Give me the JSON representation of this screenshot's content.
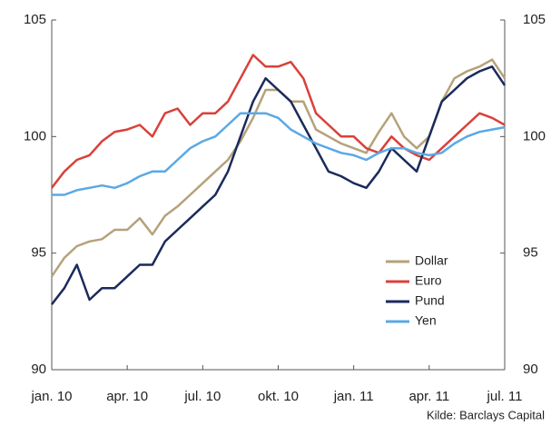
{
  "chart_data": {
    "type": "line",
    "categories": [
      "jan. 10",
      null,
      null,
      null,
      null,
      null,
      "apr. 10",
      null,
      null,
      null,
      null,
      null,
      "jul. 10",
      null,
      null,
      null,
      null,
      null,
      "okt. 10",
      null,
      null,
      null,
      null,
      null,
      "jan. 11",
      null,
      null,
      null,
      null,
      null,
      "apr. 11",
      null,
      null,
      null,
      null,
      null,
      "jul. 11"
    ],
    "series": [
      {
        "name": "Dollar",
        "color": "#b5a27a",
        "values": [
          94.0,
          94.8,
          95.3,
          95.5,
          95.6,
          96.0,
          96.0,
          96.5,
          95.8,
          96.6,
          97.0,
          97.5,
          98.0,
          98.5,
          99.0,
          99.8,
          100.8,
          102.0,
          102.0,
          101.5,
          101.5,
          100.3,
          100.0,
          99.7,
          99.5,
          99.3,
          100.2,
          101.0,
          100.0,
          99.5,
          100.0,
          101.5,
          102.5,
          102.8,
          103.0,
          103.3,
          102.5
        ]
      },
      {
        "name": "Euro",
        "color": "#d9413a",
        "values": [
          97.8,
          98.5,
          99.0,
          99.2,
          99.8,
          100.2,
          100.3,
          100.5,
          100.0,
          101.0,
          101.2,
          100.5,
          101.0,
          101.0,
          101.5,
          102.5,
          103.5,
          103.0,
          103.0,
          103.2,
          102.5,
          101.0,
          100.5,
          100.0,
          100.0,
          99.5,
          99.3,
          100.0,
          99.5,
          99.2,
          99.0,
          99.5,
          100.0,
          100.5,
          101.0,
          100.8,
          100.5
        ]
      },
      {
        "name": "Pund",
        "color": "#1b2a5c",
        "values": [
          92.8,
          93.5,
          94.5,
          93.0,
          93.5,
          93.5,
          94.0,
          94.5,
          94.5,
          95.5,
          96.0,
          96.5,
          97.0,
          97.5,
          98.5,
          100.0,
          101.5,
          102.5,
          102.0,
          101.5,
          100.5,
          99.5,
          98.5,
          98.3,
          98.0,
          97.8,
          98.5,
          99.5,
          99.0,
          98.5,
          100.0,
          101.5,
          102.0,
          102.5,
          102.8,
          103.0,
          102.2
        ]
      },
      {
        "name": "Yen",
        "color": "#5aa9e6",
        "values": [
          97.5,
          97.5,
          97.7,
          97.8,
          97.9,
          97.8,
          98.0,
          98.3,
          98.5,
          98.5,
          99.0,
          99.5,
          99.8,
          100.0,
          100.5,
          101.0,
          101.0,
          101.0,
          100.8,
          100.3,
          100.0,
          99.7,
          99.5,
          99.3,
          99.2,
          99.0,
          99.3,
          99.5,
          99.5,
          99.3,
          99.2,
          99.3,
          99.7,
          100.0,
          100.2,
          100.3,
          100.4
        ]
      }
    ],
    "ylim": [
      90,
      105
    ],
    "yticks": [
      90,
      95,
      100,
      105
    ],
    "y2lim": [
      90,
      105
    ],
    "y2ticks": [
      90,
      95,
      100,
      105
    ],
    "legend": "lower right",
    "grid": false,
    "source": "Kilde: Barclays Capital"
  }
}
